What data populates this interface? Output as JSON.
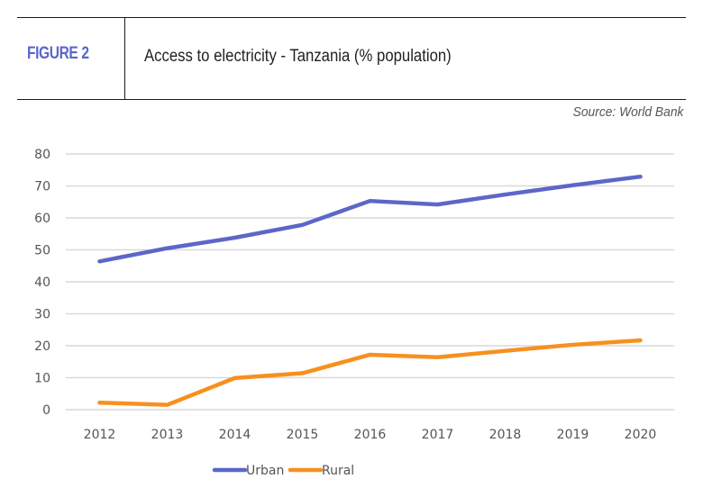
{
  "header": {
    "figure_label": "FIGURE 2",
    "title": "Access to electricity - Tanzania (% population)",
    "source": "Source: World Bank"
  },
  "colors": {
    "accent": "#5a67c9",
    "urban": "#5b67c8",
    "rural": "#f7901e",
    "grid": "#d9d9d9",
    "rule": "#1a1a1a"
  },
  "chart_data": {
    "type": "line",
    "title": "Access to electricity - Tanzania (% population)",
    "xlabel": "",
    "ylabel": "",
    "categories": [
      "2012",
      "2013",
      "2014",
      "2015",
      "2016",
      "2017",
      "2018",
      "2019",
      "2020"
    ],
    "ylim": [
      0,
      80
    ],
    "yticks": [
      "0",
      "10",
      "20",
      "30",
      "40",
      "50",
      "60",
      "70",
      "80"
    ],
    "grid": true,
    "legend_position": "bottom-center",
    "series": [
      {
        "name": "Urban",
        "values": [
          46.4,
          50.5,
          53.8,
          57.8,
          65.3,
          64.2,
          67.3,
          70.2,
          72.9
        ]
      },
      {
        "name": "Rural",
        "values": [
          2.2,
          1.5,
          9.9,
          11.4,
          17.2,
          16.4,
          18.4,
          20.3,
          21.7
        ]
      }
    ]
  }
}
